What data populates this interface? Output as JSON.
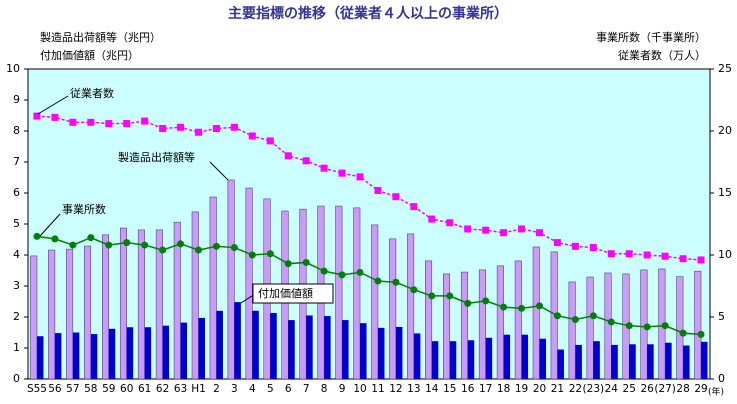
{
  "chart_data": {
    "type": "bar",
    "title": "主要指標の推移（従業者４人以上の事業所）",
    "y_axis_labels": [
      "製造品出荷額等（兆円）",
      "付加価値額（兆円）"
    ],
    "y2_axis_labels": [
      "事業所数（千事業所）",
      "従業者数（万人）"
    ],
    "x_unit": "(年)",
    "categories": [
      "S55",
      "56",
      "57",
      "58",
      "59",
      "60",
      "61",
      "62",
      "63",
      "H1",
      "2",
      "3",
      "4",
      "5",
      "6",
      "7",
      "8",
      "9",
      "10",
      "11",
      "12",
      "13",
      "14",
      "15",
      "16",
      "17",
      "18",
      "19",
      "20",
      "21",
      "22",
      "(23)",
      "24",
      "25",
      "26",
      "(27)",
      "28",
      "29"
    ],
    "series": [
      {
        "name": "製造品出荷額等",
        "type": "bar",
        "color": "#cc99ff",
        "values": [
          3.97,
          4.16,
          4.19,
          4.29,
          4.65,
          4.87,
          4.81,
          4.81,
          5.06,
          5.39,
          5.87,
          6.42,
          6.16,
          5.81,
          5.42,
          5.48,
          5.58,
          5.58,
          5.52,
          4.97,
          4.52,
          4.68,
          3.81,
          3.39,
          3.45,
          3.52,
          3.65,
          3.81,
          4.26,
          4.1,
          3.13,
          3.29,
          3.42,
          3.39,
          3.52,
          3.55,
          3.3,
          3.48
        ]
      },
      {
        "name": "付加価値額",
        "type": "bar",
        "color": "#0000cc",
        "values": [
          1.38,
          1.48,
          1.5,
          1.45,
          1.62,
          1.67,
          1.67,
          1.72,
          1.82,
          1.97,
          2.2,
          2.48,
          2.2,
          2.13,
          1.9,
          2.05,
          2.03,
          1.9,
          1.8,
          1.65,
          1.68,
          1.47,
          1.22,
          1.22,
          1.25,
          1.33,
          1.43,
          1.43,
          1.3,
          0.95,
          1.1,
          1.22,
          1.1,
          1.12,
          1.12,
          1.17,
          1.08,
          1.2
        ]
      },
      {
        "name": "従業者数",
        "type": "line",
        "axis": "y2",
        "color": "#ff00ff",
        "marker": "square",
        "values": [
          21.2,
          21.1,
          20.7,
          20.7,
          20.6,
          20.6,
          20.8,
          20.2,
          20.3,
          19.9,
          20.2,
          20.3,
          19.6,
          19.2,
          18.0,
          17.6,
          17.0,
          16.6,
          16.3,
          15.2,
          14.7,
          13.9,
          12.9,
          12.6,
          12.1,
          12.0,
          11.8,
          12.1,
          11.8,
          11.0,
          10.7,
          10.6,
          10.1,
          10.1,
          10.0,
          9.9,
          9.7,
          9.6
        ]
      },
      {
        "name": "事業所数",
        "type": "line",
        "axis": "y2",
        "color": "#008000",
        "marker": "circle",
        "values": [
          11.5,
          11.3,
          10.8,
          11.4,
          10.8,
          11.0,
          10.8,
          10.4,
          10.9,
          10.4,
          10.7,
          10.6,
          10.0,
          10.1,
          9.3,
          9.4,
          8.7,
          8.4,
          8.6,
          7.9,
          7.8,
          7.2,
          6.7,
          6.7,
          6.1,
          6.3,
          5.8,
          5.7,
          5.9,
          5.1,
          4.8,
          5.1,
          4.6,
          4.3,
          4.2,
          4.3,
          3.7,
          3.6
        ]
      }
    ],
    "ylim": [
      0,
      10
    ],
    "yticks": [
      0,
      1,
      2,
      3,
      4,
      5,
      6,
      7,
      8,
      9,
      10
    ],
    "y2lim": [
      0,
      25
    ],
    "y2ticks": [
      0,
      5,
      10,
      15,
      20,
      25
    ],
    "plot_background": "#ccffff"
  }
}
